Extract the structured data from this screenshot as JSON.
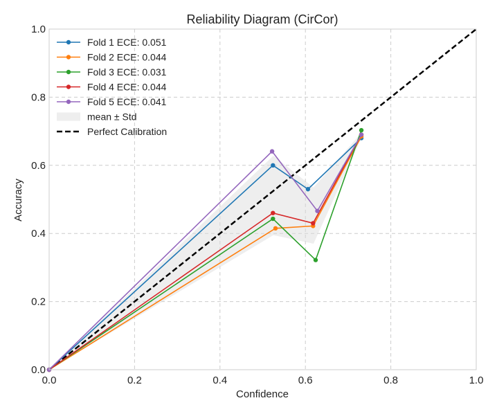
{
  "chart_data": {
    "type": "line",
    "title": "Reliability Diagram (CirCor)",
    "xlabel": "Confidence",
    "ylabel": "Accuracy",
    "xlim": [
      0,
      1
    ],
    "ylim": [
      0,
      1
    ],
    "xticks": [
      0.0,
      0.2,
      0.4,
      0.6,
      0.8,
      1.0
    ],
    "yticks": [
      0.0,
      0.2,
      0.4,
      0.6,
      0.8,
      1.0
    ],
    "xtick_labels": [
      "0.0",
      "0.2",
      "0.4",
      "0.6",
      "0.8",
      "1.0"
    ],
    "ytick_labels": [
      "0.0",
      "0.2",
      "0.4",
      "0.6",
      "0.8",
      "1.0"
    ],
    "grid": true,
    "legend_position": "top-left",
    "series": [
      {
        "name": "Fold 1 ECE: 0.051",
        "color": "#1f77b4",
        "x": [
          0.0,
          0.524,
          0.606,
          0.731
        ],
        "y": [
          0.0,
          0.6,
          0.53,
          0.68
        ]
      },
      {
        "name": "Fold 2 ECE: 0.044",
        "color": "#ff7f0e",
        "x": [
          0.0,
          0.53,
          0.618,
          0.731
        ],
        "y": [
          0.0,
          0.415,
          0.422,
          0.685
        ]
      },
      {
        "name": "Fold 3 ECE: 0.031",
        "color": "#2ca02c",
        "x": [
          0.0,
          0.524,
          0.624,
          0.731
        ],
        "y": [
          0.0,
          0.443,
          0.322,
          0.703
        ]
      },
      {
        "name": "Fold 4 ECE: 0.044",
        "color": "#d62728",
        "x": [
          0.0,
          0.524,
          0.618,
          0.731
        ],
        "y": [
          0.0,
          0.46,
          0.43,
          0.69
        ]
      },
      {
        "name": "Fold 5 ECE: 0.041",
        "color": "#9467bd",
        "x": [
          0.0,
          0.522,
          0.628,
          0.731
        ],
        "y": [
          0.0,
          0.641,
          0.466,
          0.69
        ]
      }
    ],
    "band": {
      "name": "mean ± Std",
      "color": "#d9d9d9",
      "x": [
        0.0,
        0.525,
        0.619,
        0.731
      ],
      "upper": [
        0.0,
        0.628,
        0.535,
        0.695
      ],
      "lower": [
        0.0,
        0.395,
        0.37,
        0.68
      ]
    },
    "reference": {
      "name": "Perfect Calibration",
      "color": "#000000",
      "x": [
        0,
        1
      ],
      "y": [
        0,
        1
      ]
    }
  }
}
